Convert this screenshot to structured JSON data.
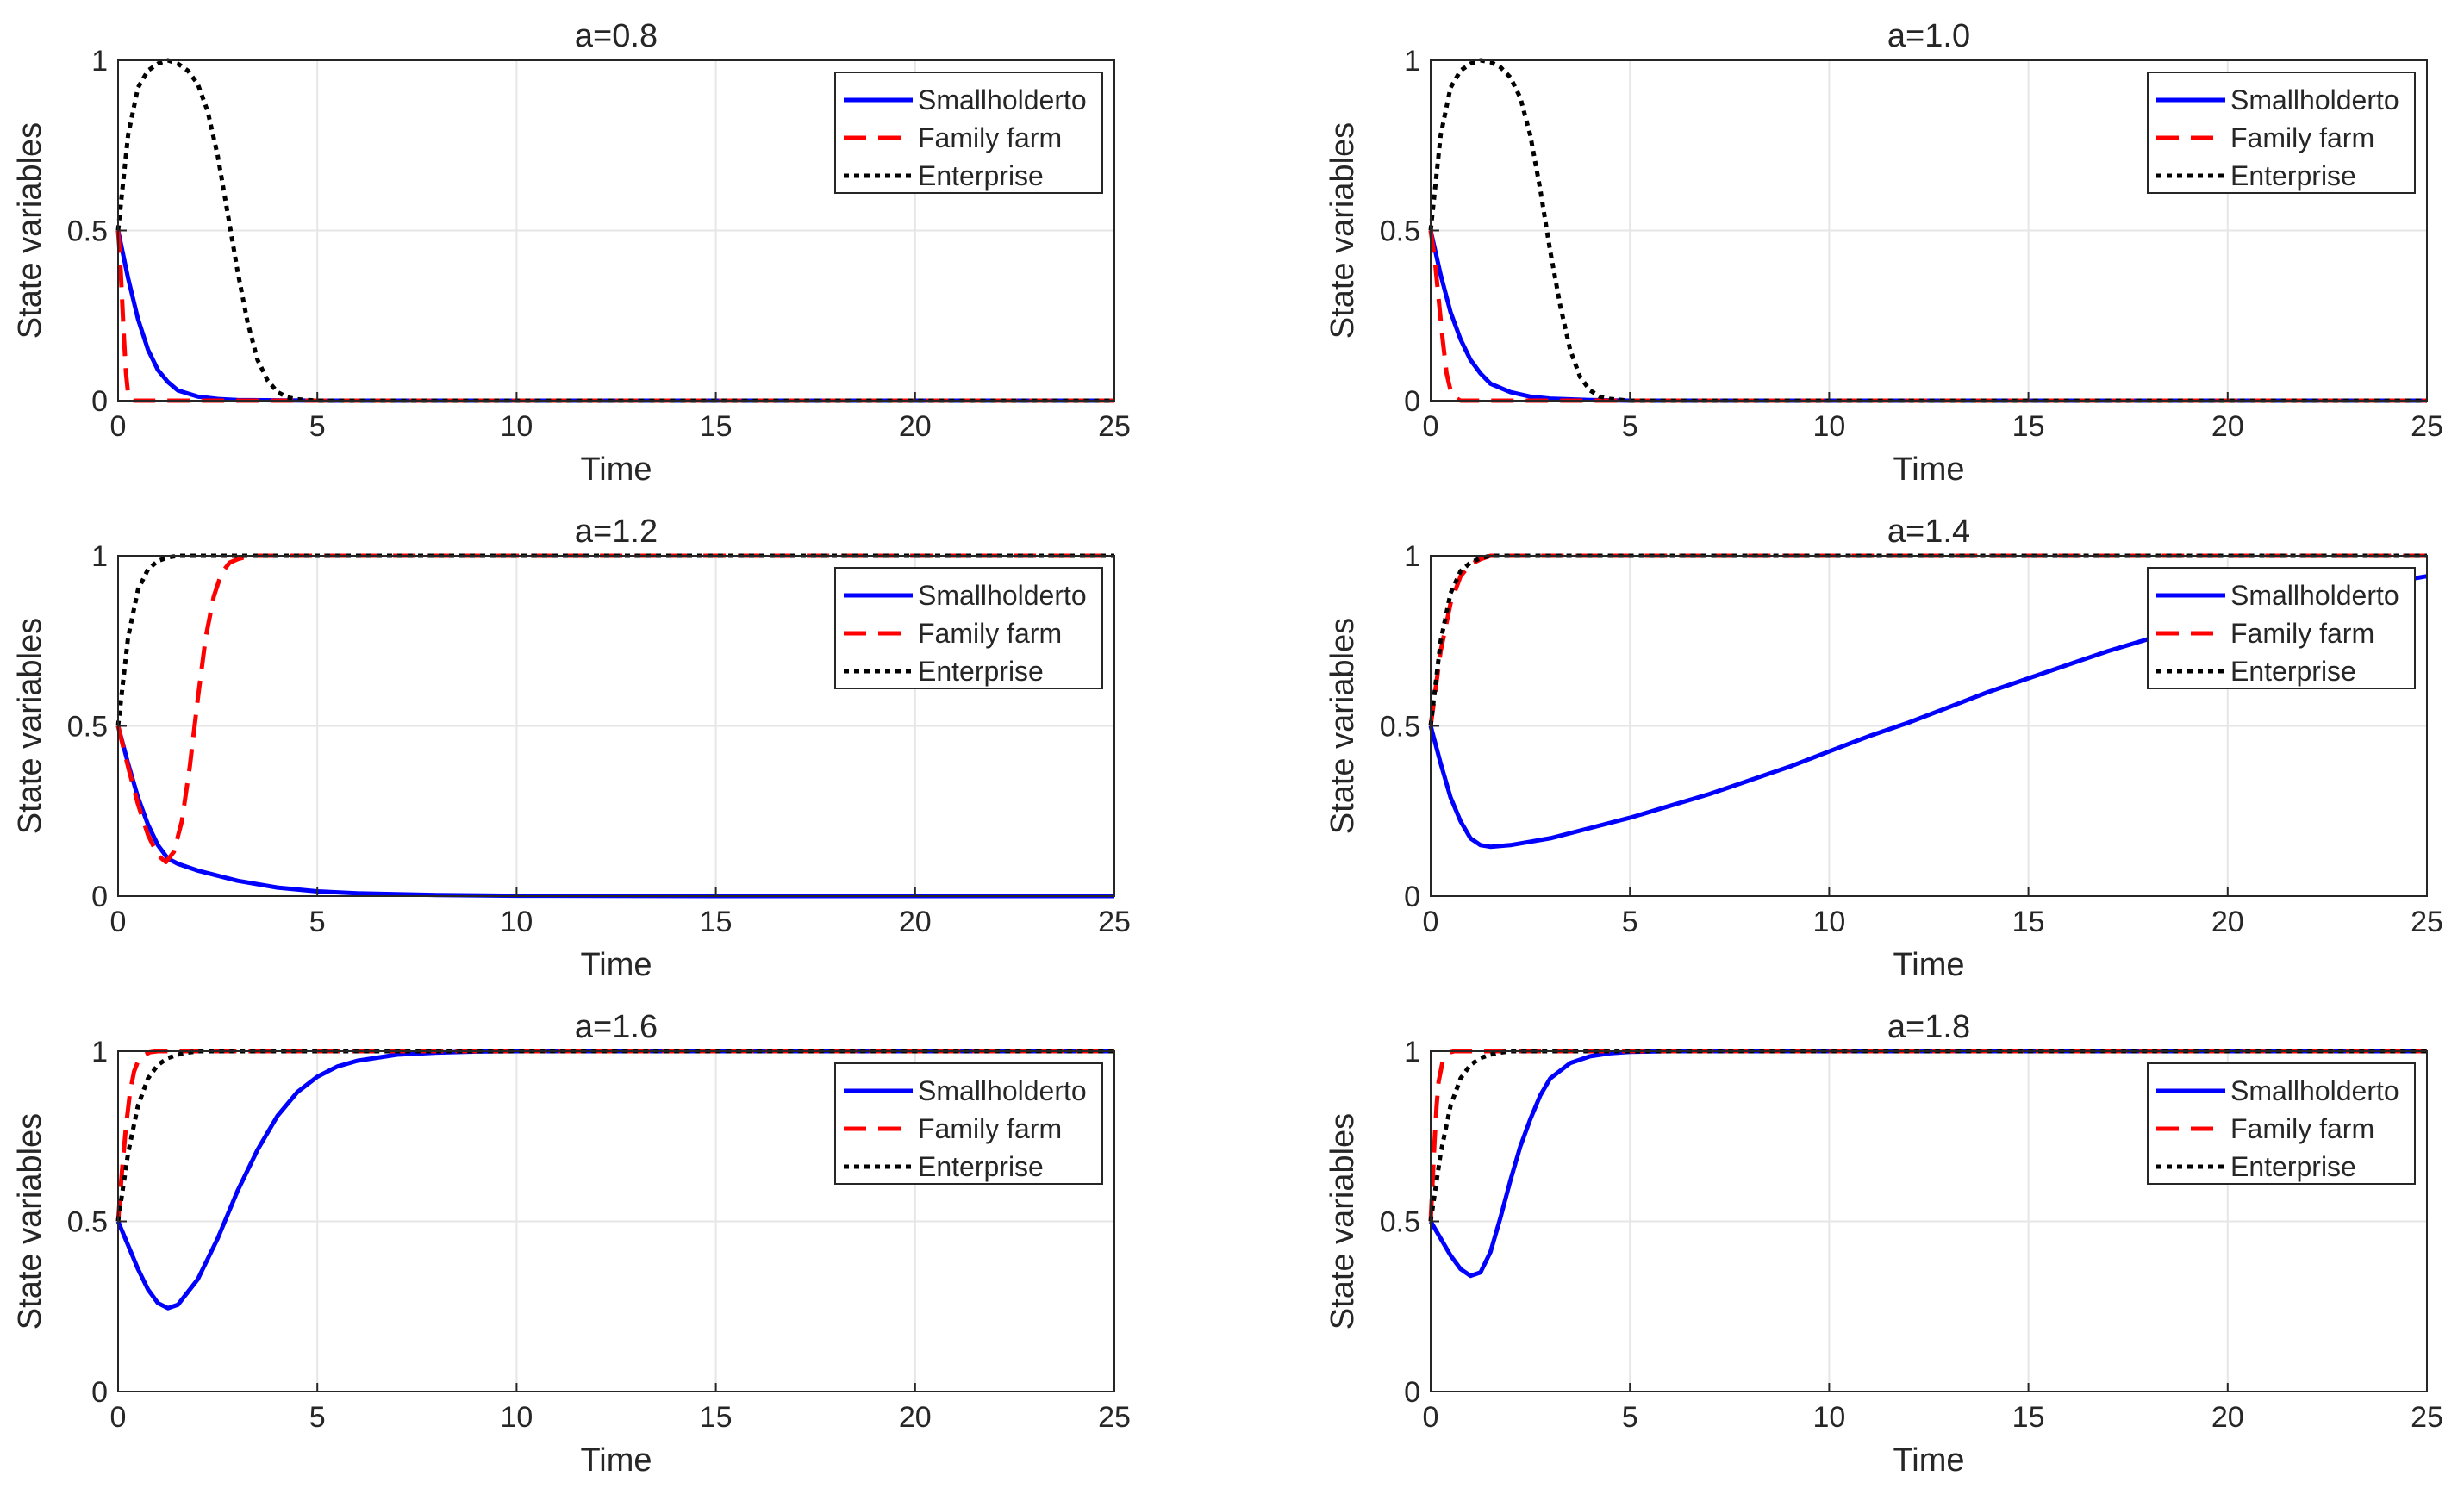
{
  "figure": {
    "series_styles": [
      {
        "name": "Smallholderto",
        "color": "#0000ff",
        "dash": "solid"
      },
      {
        "name": "Family farm",
        "color": "#ff0000",
        "dash": "dashed"
      },
      {
        "name": "Enterprise",
        "color": "#000000",
        "dash": "dotted"
      }
    ]
  },
  "chart_data": [
    {
      "type": "line",
      "title": "a=0.8",
      "xlabel": "Time",
      "ylabel": "State variables",
      "xlim": [
        0,
        25
      ],
      "ylim": [
        0,
        1
      ],
      "xticks": [
        0,
        5,
        10,
        15,
        20,
        25
      ],
      "yticks": [
        0,
        0.5,
        1
      ],
      "xtick_labels": [
        "0",
        "5",
        "10",
        "15",
        "20",
        "25"
      ],
      "ytick_labels": [
        "0",
        "0.5",
        "1"
      ],
      "grid": true,
      "legend": "top-right",
      "series": [
        {
          "name": "Smallholderto",
          "x": [
            0,
            0.25,
            0.5,
            0.75,
            1,
            1.25,
            1.5,
            2,
            2.5,
            3,
            4,
            5,
            10,
            15,
            20,
            25
          ],
          "values": [
            0.5,
            0.36,
            0.24,
            0.15,
            0.09,
            0.055,
            0.03,
            0.012,
            0.005,
            0.002,
            0.001,
            0,
            0,
            0,
            0,
            0
          ]
        },
        {
          "name": "Family farm",
          "x": [
            0,
            0.05,
            0.1,
            0.15,
            0.2,
            0.25,
            0.3,
            0.4,
            1,
            5,
            10,
            15,
            20,
            25
          ],
          "values": [
            0.5,
            0.42,
            0.3,
            0.18,
            0.08,
            0.02,
            0.005,
            0,
            0,
            0,
            0,
            0,
            0,
            0
          ]
        },
        {
          "name": "Enterprise",
          "x": [
            0,
            0.25,
            0.5,
            0.75,
            1,
            1.25,
            1.5,
            1.75,
            2,
            2.25,
            2.5,
            2.75,
            3,
            3.25,
            3.5,
            3.75,
            4,
            4.25,
            4.5,
            5,
            10,
            15,
            20,
            25
          ],
          "values": [
            0.5,
            0.78,
            0.92,
            0.97,
            0.99,
            1,
            0.99,
            0.97,
            0.93,
            0.85,
            0.72,
            0.55,
            0.38,
            0.23,
            0.12,
            0.06,
            0.025,
            0.01,
            0.004,
            0,
            0,
            0,
            0,
            0
          ]
        }
      ]
    },
    {
      "type": "line",
      "title": "a=1.0",
      "xlabel": "Time",
      "ylabel": "State variables",
      "xlim": [
        0,
        25
      ],
      "ylim": [
        0,
        1
      ],
      "xticks": [
        0,
        5,
        10,
        15,
        20,
        25
      ],
      "yticks": [
        0,
        0.5,
        1
      ],
      "xtick_labels": [
        "0",
        "5",
        "10",
        "15",
        "20",
        "25"
      ],
      "ytick_labels": [
        "0",
        "0.5",
        "1"
      ],
      "grid": true,
      "legend": "top-right",
      "series": [
        {
          "name": "Smallholderto",
          "x": [
            0,
            0.25,
            0.5,
            0.75,
            1,
            1.25,
            1.5,
            2,
            2.5,
            3,
            4,
            5,
            10,
            15,
            20,
            25
          ],
          "values": [
            0.5,
            0.37,
            0.26,
            0.18,
            0.12,
            0.08,
            0.05,
            0.025,
            0.012,
            0.006,
            0.002,
            0,
            0,
            0,
            0,
            0
          ]
        },
        {
          "name": "Family farm",
          "x": [
            0,
            0.1,
            0.2,
            0.3,
            0.4,
            0.5,
            0.6,
            0.75,
            1,
            5,
            10,
            15,
            20,
            25
          ],
          "values": [
            0.5,
            0.42,
            0.3,
            0.18,
            0.08,
            0.03,
            0.01,
            0,
            0,
            0,
            0,
            0,
            0,
            0
          ]
        },
        {
          "name": "Enterprise",
          "x": [
            0,
            0.25,
            0.5,
            0.75,
            1,
            1.25,
            1.5,
            1.75,
            2,
            2.25,
            2.5,
            2.75,
            3,
            3.25,
            3.5,
            3.75,
            4,
            4.25,
            4.5,
            5,
            10,
            15,
            20,
            25
          ],
          "values": [
            0.5,
            0.78,
            0.92,
            0.97,
            0.99,
            1,
            0.995,
            0.98,
            0.95,
            0.89,
            0.78,
            0.62,
            0.44,
            0.28,
            0.15,
            0.07,
            0.03,
            0.012,
            0.005,
            0,
            0,
            0,
            0,
            0
          ]
        }
      ]
    },
    {
      "type": "line",
      "title": "a=1.2",
      "xlabel": "Time",
      "ylabel": "State variables",
      "xlim": [
        0,
        25
      ],
      "ylim": [
        0,
        1
      ],
      "xticks": [
        0,
        5,
        10,
        15,
        20,
        25
      ],
      "yticks": [
        0,
        0.5,
        1
      ],
      "xtick_labels": [
        "0",
        "5",
        "10",
        "15",
        "20",
        "25"
      ],
      "ytick_labels": [
        "0",
        "0.5",
        "1"
      ],
      "grid": true,
      "legend": "top-right",
      "series": [
        {
          "name": "Smallholderto",
          "x": [
            0,
            0.25,
            0.5,
            0.75,
            1,
            1.25,
            1.5,
            2,
            2.5,
            3,
            4,
            5,
            6,
            8,
            10,
            15,
            20,
            25
          ],
          "values": [
            0.5,
            0.39,
            0.29,
            0.21,
            0.15,
            0.11,
            0.095,
            0.075,
            0.06,
            0.045,
            0.025,
            0.014,
            0.008,
            0.003,
            0.001,
            0,
            0,
            0
          ]
        },
        {
          "name": "Family farm",
          "x": [
            0,
            0.25,
            0.5,
            0.75,
            1,
            1.2,
            1.4,
            1.6,
            1.8,
            2,
            2.2,
            2.4,
            2.6,
            2.8,
            3,
            3.3,
            3.6,
            4,
            5,
            10,
            15,
            20,
            25
          ],
          "values": [
            0.5,
            0.38,
            0.27,
            0.18,
            0.12,
            0.1,
            0.13,
            0.22,
            0.38,
            0.58,
            0.76,
            0.88,
            0.95,
            0.98,
            0.99,
            1,
            1,
            1,
            1,
            1,
            1,
            1,
            1
          ]
        },
        {
          "name": "Enterprise",
          "x": [
            0,
            0.25,
            0.5,
            0.75,
            1,
            1.25,
            1.5,
            1.75,
            2,
            2.5,
            3,
            5,
            10,
            15,
            20,
            25
          ],
          "values": [
            0.5,
            0.76,
            0.9,
            0.96,
            0.985,
            0.995,
            1,
            1,
            1,
            1,
            1,
            1,
            1,
            1,
            1,
            1
          ]
        }
      ]
    },
    {
      "type": "line",
      "title": "a=1.4",
      "xlabel": "Time",
      "ylabel": "State variables",
      "xlim": [
        0,
        25
      ],
      "ylim": [
        0,
        1
      ],
      "xticks": [
        0,
        5,
        10,
        15,
        20,
        25
      ],
      "yticks": [
        0,
        0.5,
        1
      ],
      "xtick_labels": [
        "0",
        "5",
        "10",
        "15",
        "20",
        "25"
      ],
      "ytick_labels": [
        "0",
        "0.5",
        "1"
      ],
      "grid": true,
      "legend": "top-right",
      "series": [
        {
          "name": "Smallholderto",
          "x": [
            0,
            0.25,
            0.5,
            0.75,
            1,
            1.25,
            1.5,
            2,
            3,
            4,
            5,
            6,
            7,
            8,
            9,
            10,
            11,
            12,
            13,
            14,
            15,
            16,
            17,
            18,
            19,
            20,
            21,
            22,
            23,
            24,
            25
          ],
          "values": [
            0.5,
            0.39,
            0.29,
            0.22,
            0.17,
            0.15,
            0.145,
            0.15,
            0.17,
            0.2,
            0.23,
            0.265,
            0.3,
            0.34,
            0.38,
            0.425,
            0.47,
            0.51,
            0.555,
            0.6,
            0.64,
            0.68,
            0.72,
            0.755,
            0.79,
            0.82,
            0.85,
            0.875,
            0.9,
            0.92,
            0.94
          ]
        },
        {
          "name": "Family farm",
          "x": [
            0,
            0.25,
            0.5,
            0.75,
            1,
            1.25,
            1.5,
            2,
            3,
            5,
            10,
            15,
            20,
            25
          ],
          "values": [
            0.5,
            0.72,
            0.86,
            0.94,
            0.975,
            0.99,
            1,
            1,
            1,
            1,
            1,
            1,
            1,
            1
          ]
        },
        {
          "name": "Enterprise",
          "x": [
            0,
            0.25,
            0.5,
            0.75,
            1,
            1.25,
            1.5,
            2,
            3,
            5,
            10,
            15,
            20,
            25
          ],
          "values": [
            0.5,
            0.75,
            0.89,
            0.955,
            0.98,
            0.993,
            1,
            1,
            1,
            1,
            1,
            1,
            1,
            1
          ]
        }
      ]
    },
    {
      "type": "line",
      "title": "a=1.6",
      "xlabel": "Time",
      "ylabel": "State variables",
      "xlim": [
        0,
        25
      ],
      "ylim": [
        0,
        1
      ],
      "xticks": [
        0,
        5,
        10,
        15,
        20,
        25
      ],
      "yticks": [
        0,
        0.5,
        1
      ],
      "xtick_labels": [
        "0",
        "5",
        "10",
        "15",
        "20",
        "25"
      ],
      "ytick_labels": [
        "0",
        "0.5",
        "1"
      ],
      "grid": true,
      "legend": "top-right",
      "series": [
        {
          "name": "Smallholderto",
          "x": [
            0,
            0.25,
            0.5,
            0.75,
            1,
            1.25,
            1.5,
            2,
            2.5,
            3,
            3.5,
            4,
            4.5,
            5,
            5.5,
            6,
            7,
            8,
            9,
            10,
            15,
            20,
            25
          ],
          "values": [
            0.5,
            0.43,
            0.36,
            0.3,
            0.26,
            0.245,
            0.255,
            0.33,
            0.45,
            0.59,
            0.71,
            0.81,
            0.88,
            0.925,
            0.955,
            0.972,
            0.99,
            0.996,
            0.999,
            1,
            1,
            1,
            1
          ]
        },
        {
          "name": "Family farm",
          "x": [
            0,
            0.1,
            0.2,
            0.3,
            0.4,
            0.5,
            0.6,
            0.8,
            1,
            5,
            10,
            15,
            20,
            25
          ],
          "values": [
            0.5,
            0.65,
            0.78,
            0.88,
            0.94,
            0.97,
            0.985,
            0.997,
            1,
            1,
            1,
            1,
            1,
            1
          ]
        },
        {
          "name": "Enterprise",
          "x": [
            0,
            0.25,
            0.5,
            0.75,
            1,
            1.25,
            1.5,
            1.75,
            2,
            2.5,
            3,
            5,
            10,
            15,
            20,
            25
          ],
          "values": [
            0.5,
            0.7,
            0.84,
            0.92,
            0.96,
            0.98,
            0.99,
            0.996,
            1,
            1,
            1,
            1,
            1,
            1,
            1,
            1
          ]
        }
      ]
    },
    {
      "type": "line",
      "title": "a=1.8",
      "xlabel": "Time",
      "ylabel": "State variables",
      "xlim": [
        0,
        25
      ],
      "ylim": [
        0,
        1
      ],
      "xticks": [
        0,
        5,
        10,
        15,
        20,
        25
      ],
      "yticks": [
        0,
        0.5,
        1
      ],
      "xtick_labels": [
        "0",
        "5",
        "10",
        "15",
        "20",
        "25"
      ],
      "ytick_labels": [
        "0",
        "0.5",
        "1"
      ],
      "grid": true,
      "legend": "top-right",
      "series": [
        {
          "name": "Smallholderto",
          "x": [
            0,
            0.25,
            0.5,
            0.75,
            1,
            1.25,
            1.5,
            1.75,
            2,
            2.25,
            2.5,
            2.75,
            3,
            3.5,
            4,
            4.5,
            5,
            6,
            7,
            10,
            15,
            20,
            25
          ],
          "values": [
            0.5,
            0.45,
            0.4,
            0.36,
            0.34,
            0.35,
            0.41,
            0.51,
            0.62,
            0.72,
            0.8,
            0.87,
            0.92,
            0.965,
            0.985,
            0.994,
            0.998,
            1,
            1,
            1,
            1,
            1,
            1
          ]
        },
        {
          "name": "Family farm",
          "x": [
            0,
            0.05,
            0.1,
            0.15,
            0.2,
            0.3,
            0.4,
            0.5,
            0.6,
            1,
            5,
            10,
            15,
            20,
            25
          ],
          "values": [
            0.5,
            0.62,
            0.74,
            0.84,
            0.91,
            0.97,
            0.99,
            0.997,
            1,
            1,
            1,
            1,
            1,
            1,
            1
          ]
        },
        {
          "name": "Enterprise",
          "x": [
            0,
            0.25,
            0.5,
            0.75,
            1,
            1.25,
            1.5,
            1.75,
            2,
            2.5,
            3,
            5,
            10,
            15,
            20,
            25
          ],
          "values": [
            0.5,
            0.7,
            0.84,
            0.92,
            0.96,
            0.98,
            0.99,
            0.996,
            1,
            1,
            1,
            1,
            1,
            1,
            1,
            1
          ]
        }
      ]
    }
  ]
}
